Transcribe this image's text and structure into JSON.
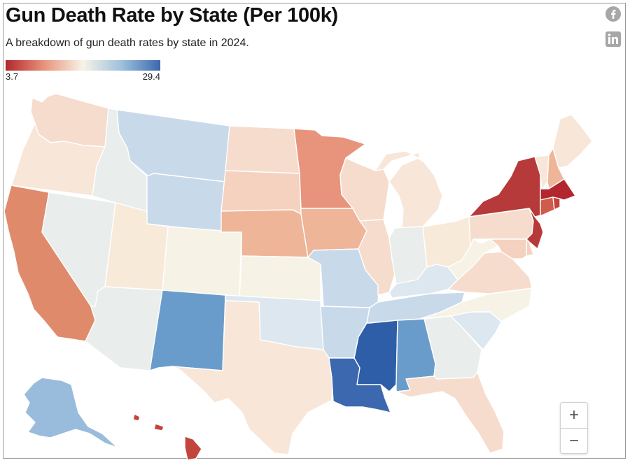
{
  "header": {
    "title": "Gun Death Rate by State (Per 100k)",
    "subtitle": "A breakdown of gun death rates by state in 2024."
  },
  "legend": {
    "min_label": "3.7",
    "max_label": "29.4"
  },
  "share": [
    "facebook-icon",
    "linkedin-icon",
    "x-icon"
  ],
  "zoom": {
    "in_label": "+",
    "out_label": "−"
  },
  "colors": {
    "very_low": "#b2272d",
    "low": "#d9674f",
    "low_mid": "#e8937c",
    "mid_low": "#efb598",
    "peach": "#f4d2bf",
    "light_peach": "#f7e1d1",
    "cream": "#f8efe0",
    "off_white": "#f6f3e6",
    "gray": "#e9edec",
    "pale_blue": "#dde7f0",
    "light_blue": "#c8d9ea",
    "blue": "#99bcdc",
    "mid_blue": "#6a9ccb",
    "dark_blue": "#3b68ae",
    "darkest_blue": "#2f5ea8"
  },
  "chart_data": {
    "type": "choropleth",
    "title": "Gun Death Rate by State (Per 100k)",
    "subtitle": "A breakdown of gun death rates by state in 2024.",
    "scale": {
      "min": 3.7,
      "max": 29.4
    },
    "states": [
      {
        "state": "Washington",
        "color": "#f5dccd"
      },
      {
        "state": "Oregon",
        "color": "#f8e6d8"
      },
      {
        "state": "California",
        "color": "#e08a6c"
      },
      {
        "state": "Nevada",
        "color": "#e9edec"
      },
      {
        "state": "Idaho",
        "color": "#e9edec"
      },
      {
        "state": "Montana",
        "color": "#c8d9ea"
      },
      {
        "state": "Wyoming",
        "color": "#c8d9ea"
      },
      {
        "state": "Utah",
        "color": "#f8ead9"
      },
      {
        "state": "Arizona",
        "color": "#e9edec"
      },
      {
        "state": "Colorado",
        "color": "#f6f3e6"
      },
      {
        "state": "New Mexico",
        "color": "#6a9ccb"
      },
      {
        "state": "North Dakota",
        "color": "#f6dccc"
      },
      {
        "state": "South Dakota",
        "color": "#f4d2bf"
      },
      {
        "state": "Nebraska",
        "color": "#efb598"
      },
      {
        "state": "Kansas",
        "color": "#f6f3e6"
      },
      {
        "state": "Oklahoma",
        "color": "#dde7f0"
      },
      {
        "state": "Texas",
        "color": "#f8e6d8"
      },
      {
        "state": "Minnesota",
        "color": "#e8937c"
      },
      {
        "state": "Iowa",
        "color": "#efb598"
      },
      {
        "state": "Missouri",
        "color": "#c8d9ea"
      },
      {
        "state": "Arkansas",
        "color": "#c8d9ea"
      },
      {
        "state": "Louisiana",
        "color": "#3b68ae"
      },
      {
        "state": "Wisconsin",
        "color": "#f6dccc"
      },
      {
        "state": "Illinois",
        "color": "#f6dccc"
      },
      {
        "state": "Michigan",
        "color": "#f8e6d8"
      },
      {
        "state": "Indiana",
        "color": "#e9edec"
      },
      {
        "state": "Ohio",
        "color": "#f8ead9"
      },
      {
        "state": "Kentucky",
        "color": "#dde7f0"
      },
      {
        "state": "Tennessee",
        "color": "#c8d9ea"
      },
      {
        "state": "Mississippi",
        "color": "#2f5ea8"
      },
      {
        "state": "Alabama",
        "color": "#6a9ccb"
      },
      {
        "state": "Georgia",
        "color": "#e9edec"
      },
      {
        "state": "Florida",
        "color": "#f6dccc"
      },
      {
        "state": "South Carolina",
        "color": "#dde7f0"
      },
      {
        "state": "North Carolina",
        "color": "#f6f3e6"
      },
      {
        "state": "Virginia",
        "color": "#f6dccc"
      },
      {
        "state": "West Virginia",
        "color": "#f6f3e6"
      },
      {
        "state": "Pennsylvania",
        "color": "#f6dccc"
      },
      {
        "state": "New York",
        "color": "#b73a3a"
      },
      {
        "state": "Vermont",
        "color": "#f8e6d8"
      },
      {
        "state": "New Hampshire",
        "color": "#efb598"
      },
      {
        "state": "Maine",
        "color": "#f8e6d8"
      },
      {
        "state": "Massachusetts",
        "color": "#b2272d"
      },
      {
        "state": "Connecticut",
        "color": "#cf5b4a"
      },
      {
        "state": "Rhode Island",
        "color": "#c1443d"
      },
      {
        "state": "New Jersey",
        "color": "#b73a3a"
      },
      {
        "state": "Delaware",
        "color": "#f4d2bf"
      },
      {
        "state": "Maryland",
        "color": "#f4d2bf"
      },
      {
        "state": "Alaska",
        "color": "#99bcdc"
      },
      {
        "state": "Hawaii",
        "color": "#c1443d"
      }
    ]
  }
}
